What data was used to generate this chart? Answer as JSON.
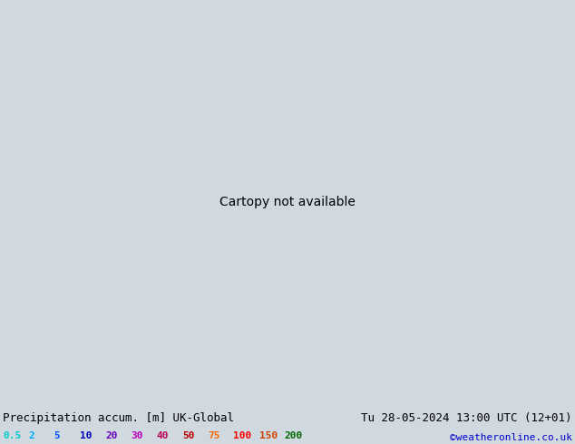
{
  "title_left": "Precipitation accum. [m] UK-Global",
  "title_right": "Tu 28-05-2024 13:00 UTC (12+01)",
  "credit": "©weatheronline.co.uk",
  "legend_values": [
    "0.5",
    "2",
    "5",
    "10",
    "20",
    "30",
    "40",
    "50",
    "75",
    "100",
    "150",
    "200"
  ],
  "legend_colors": [
    "#00cccc",
    "#00aaff",
    "#0055ff",
    "#0000bb",
    "#6600bb",
    "#bb00bb",
    "#bb0055",
    "#bb0000",
    "#ff6600",
    "#ff0000",
    "#cc4400",
    "#006600"
  ],
  "bg_color": "#d0d8e0",
  "land_color": "#90ee90",
  "land_color2": "#a8f0a8",
  "sea_color": "#c8d4dc",
  "border_color": "#333333",
  "precip_cyan": "#88ddee",
  "precip_blue": "#44aadd",
  "precip_darkblue": "#2266cc",
  "bottom_bg": "#d8d8d8",
  "fig_width": 6.34,
  "fig_height": 4.9,
  "dpi": 100,
  "title_fontsize": 9,
  "legend_fontsize": 8,
  "credit_fontsize": 8
}
